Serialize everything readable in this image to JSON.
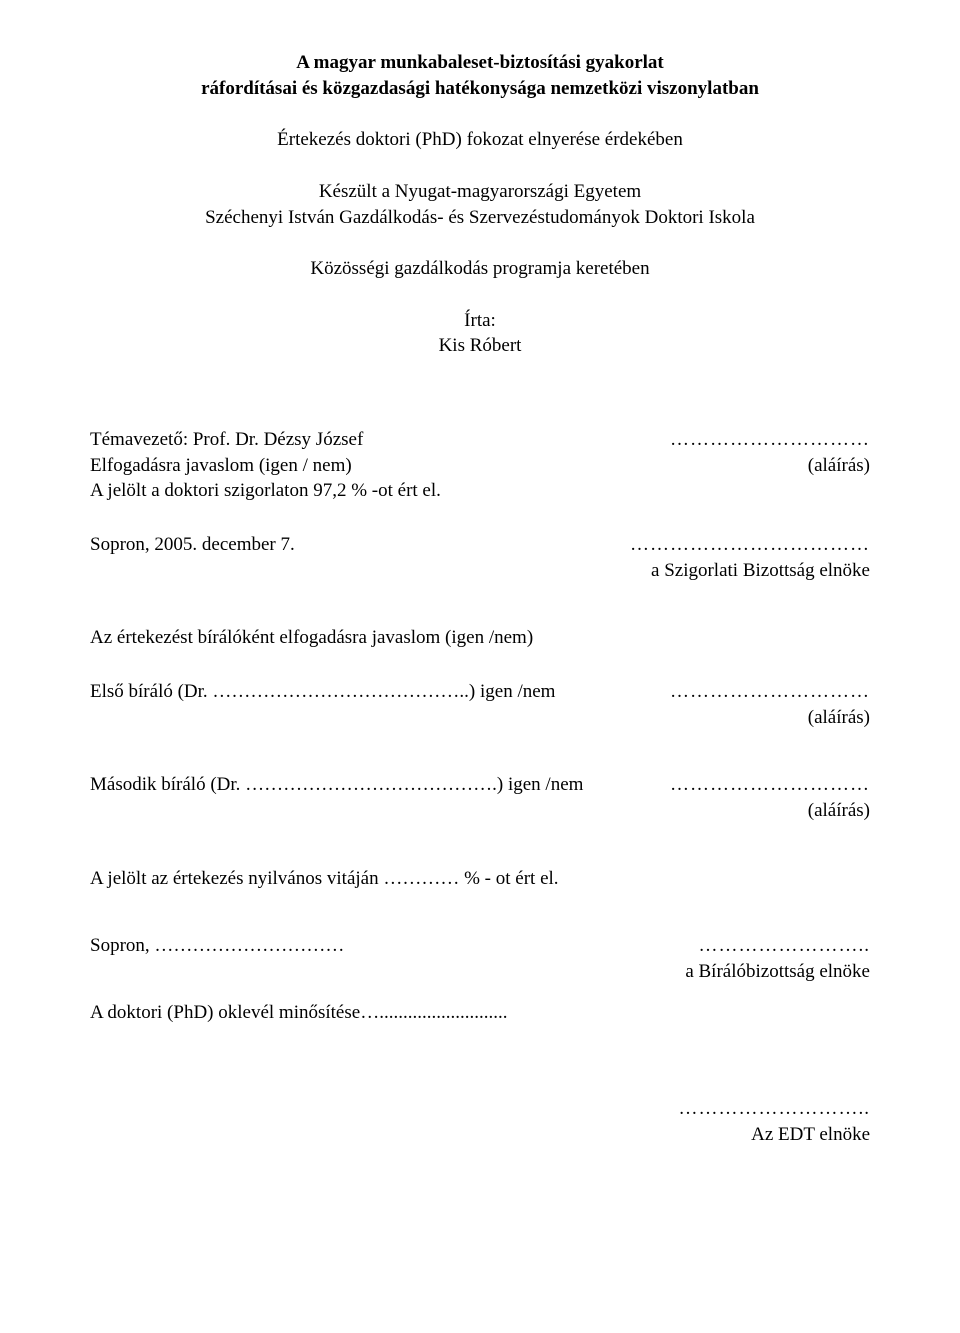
{
  "title_line1": "A magyar munkabaleset-biztosítási gyakorlat",
  "title_line2": "ráfordításai és közgazdasági hatékonysága nemzetközi viszonylatban",
  "subtitle": "Értekezés doktori (PhD) fokozat elnyerése érdekében",
  "institution_line1": "Készült a Nyugat-magyarországi Egyetem",
  "institution_line2": "Széchenyi István Gazdálkodás- és Szervezéstudományok Doktori Iskola",
  "program_line": "Közösségi gazdálkodás programja keretében",
  "author_label": "Írta:",
  "author_name": "Kis Róbert",
  "supervisor_line": "Témavezető: Prof. Dr. Dézsy József",
  "proposal_line": "Elfogadásra javaslom (igen / nem)",
  "signature_label": "(aláírás)",
  "exam_result": "A jelölt a doktori szigorlaton 97,2 % -ot ért el.",
  "sopron_date": "Sopron, 2005. december 7.",
  "committee_chair": "a Szigorlati Bizottság elnöke",
  "reviewer_proposal": "Az értekezést bírálóként elfogadásra javaslom (igen /nem)",
  "first_reviewer": "Első bíráló (Dr. …………………………………..) igen /nem",
  "second_reviewer": "Második bíráló (Dr. ………………………………….) igen /nem",
  "public_defense": "A jelölt az értekezés nyilvános vitáján ………… % - ot ért el.",
  "sopron_open": "Sopron, …………………………",
  "jury_chair": "a Bírálóbizottság elnöke",
  "diploma_qualification": "A doktori (PhD) oklevél minősítése…...........................",
  "edt_chair": "Az EDT elnöke",
  "ellipsis_short": "…………",
  "ellipsis_med": "…………………………",
  "ellipsis_long": "………………………………",
  "ellipsis_dots2": "……………………..",
  "ellipsis_dots3": "……………………….."
}
